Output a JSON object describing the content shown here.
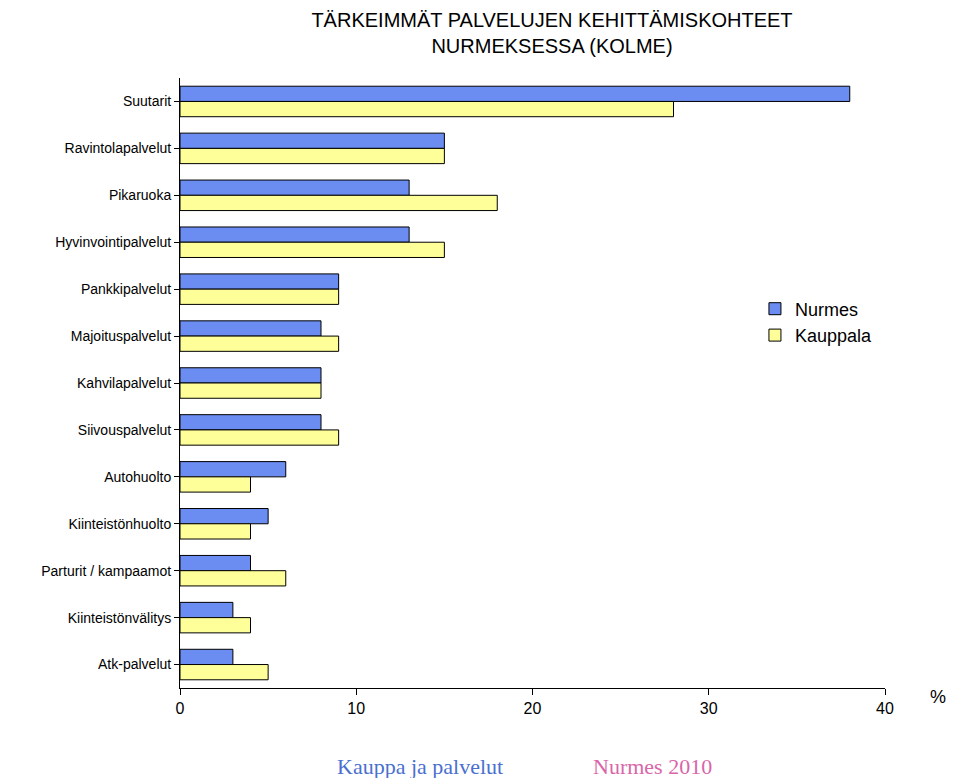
{
  "chart_data": {
    "type": "bar",
    "orientation": "horizontal",
    "title": "TÄRKEIMMÄT PALVELUJEN KEHITTÄMISKOHTEET\nNURMEKSESSA (KOLME)",
    "x_label": "%",
    "categories": [
      "Suutarit",
      "Ravintolapalvelut",
      "Pikaruoka",
      "Hyvinvointipalvelut",
      "Pankkipalvelut",
      "Majoituspalvelut",
      "Kahvilapalvelut",
      "Siivouspalvelut",
      "Autohuolto",
      "Kiinteistönhuolto",
      "Parturit / kampaamot",
      "Kiinteistönvälitys",
      "Atk-palvelut"
    ],
    "series": [
      {
        "name": "Nurmes",
        "color": "#6b8cf0",
        "values": [
          38,
          15,
          13,
          13,
          9,
          8,
          8,
          8,
          6,
          5,
          4,
          3,
          3
        ]
      },
      {
        "name": "Kauppala",
        "color": "#ffff99",
        "values": [
          28,
          15,
          18,
          15,
          9,
          9,
          8,
          9,
          4,
          4,
          6,
          4,
          5
        ]
      }
    ],
    "xlim": [
      0,
      40
    ],
    "xticks": [
      0,
      10,
      20,
      30,
      40
    ],
    "grid": false,
    "legend": "right",
    "annotations": [
      {
        "text": "Kauppa ja palvelut",
        "color": "#4a6fd0"
      },
      {
        "text": "Nurmes 2010",
        "color": "#d966a8"
      }
    ]
  }
}
